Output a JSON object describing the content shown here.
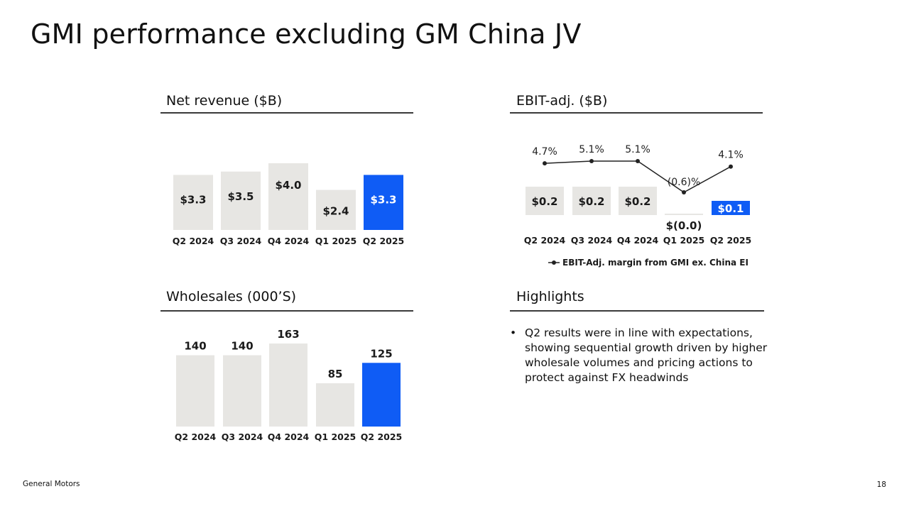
{
  "page": {
    "title": "GMI performance excluding GM China JV",
    "footer_company": "General Motors",
    "page_number": "18"
  },
  "colors": {
    "bar_default": "#e7e6e3",
    "bar_highlight": "#0f5cf5",
    "text": "#1a1a1a",
    "label_on_highlight": "#ffffff",
    "line": "#222222"
  },
  "panels": {
    "revenue": {
      "title": "Net revenue ($B)"
    },
    "ebit": {
      "title": "EBIT-adj. ($B)"
    },
    "wholesales": {
      "title": "Wholesales (000’S)"
    },
    "highlights": {
      "title": "Highlights",
      "bullets": [
        "Q2 results were in line with expectations, showing sequential growth driven by higher wholesale volumes and pricing actions to protect against FX headwinds"
      ]
    }
  },
  "chart_data": [
    {
      "type": "bar",
      "title": "Net revenue ($B)",
      "categories": [
        "Q2 2024",
        "Q3 2024",
        "Q4 2024",
        "Q1 2025",
        "Q2 2025"
      ],
      "values": [
        3.3,
        3.5,
        4.0,
        2.4,
        3.3
      ],
      "labels": [
        "$3.3",
        "$3.5",
        "$4.0",
        "$2.4",
        "$3.3"
      ],
      "highlight_index": 4,
      "ylim": [
        0,
        4.4
      ]
    },
    {
      "type": "bar",
      "title": "EBIT-adj. ($B)",
      "categories": [
        "Q2 2024",
        "Q3 2024",
        "Q4 2024",
        "Q1 2025",
        "Q2 2025"
      ],
      "values": [
        0.2,
        0.2,
        0.2,
        0.0,
        0.1
      ],
      "labels": [
        "$0.2",
        "$0.2",
        "$0.2",
        "$(0.0)",
        "$0.1"
      ],
      "highlight_index": 4,
      "line_series": {
        "name": "EBIT-Adj. margin from GMI ex. China EI",
        "values": [
          4.7,
          5.1,
          5.1,
          -0.6,
          4.1
        ],
        "labels": [
          "4.7%",
          "5.1%",
          "5.1%",
          "(0.6)%",
          "4.1%"
        ]
      }
    },
    {
      "type": "bar",
      "title": "Wholesales (000’S)",
      "categories": [
        "Q2 2024",
        "Q3 2024",
        "Q4 2024",
        "Q1 2025",
        "Q2 2025"
      ],
      "values": [
        140,
        140,
        163,
        85,
        125
      ],
      "labels": [
        "140",
        "140",
        "163",
        "85",
        "125"
      ],
      "highlight_index": 4,
      "ylim": [
        0,
        175
      ]
    }
  ]
}
